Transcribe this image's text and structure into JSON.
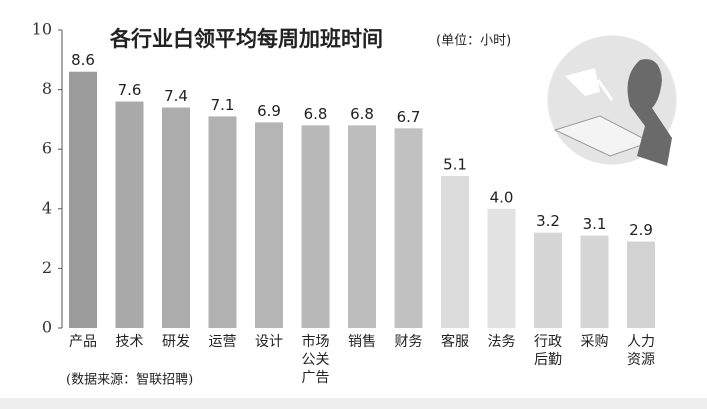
{
  "chart_data": {
    "type": "bar",
    "title": "各行业白领平均每周加班时间",
    "subtitle": "(单位：小时)",
    "source": "(数据来源：智联招聘)",
    "categories": [
      "产品",
      "技术",
      "研发",
      "运营",
      "设计",
      "市场公关广告",
      "销售",
      "财务",
      "客服",
      "法务",
      "行政后勤",
      "采购",
      "人力资源"
    ],
    "values": [
      8.6,
      7.6,
      7.4,
      7.1,
      6.9,
      6.8,
      6.8,
      6.7,
      5.1,
      4.0,
      3.2,
      3.1,
      2.9
    ],
    "value_labels": [
      "8.6",
      "7.6",
      "7.4",
      "7.1",
      "6.9",
      "6.8",
      "6.8",
      "6.7",
      "5.1",
      "4.0",
      "3.2",
      "3.1",
      "2.9"
    ],
    "colors": [
      "#9b9b9b",
      "#a9a9a9",
      "#adadad",
      "#b1b1b1",
      "#b5b5b5",
      "#b9b9b9",
      "#bdbdbd",
      "#c1c1c1",
      "#dcdcdc",
      "#e2e2e2",
      "#d6d6d6",
      "#d6d6d6",
      "#d2d2d2"
    ],
    "ylim": [
      0,
      10
    ],
    "yticks": [
      0,
      2,
      4,
      6,
      8,
      10
    ]
  }
}
